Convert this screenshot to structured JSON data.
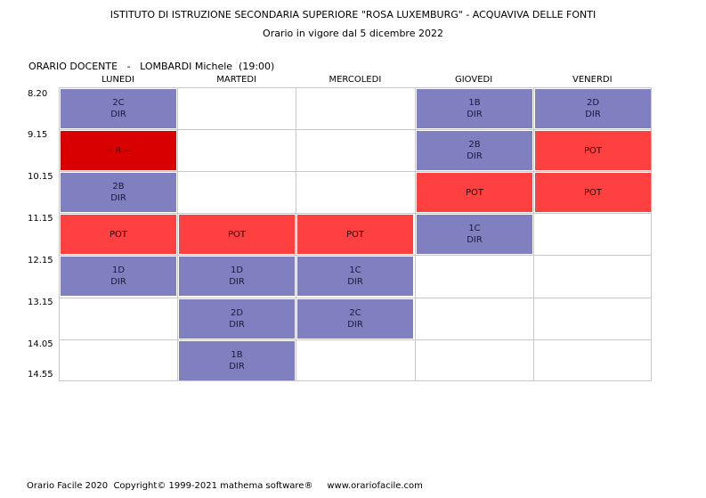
{
  "header": {
    "line1": "ISTITUTO DI ISTRUZIONE SECONDARIA SUPERIORE \"ROSA LUXEMBURG\" - ACQUAVIVA DELLE FONTI",
    "line2": "Orario in vigore dal 5 dicembre 2022"
  },
  "teacher": {
    "label": "ORARIO DOCENTE",
    "separator": "-",
    "name": "LOMBARDI Michele",
    "hours": "(19:00)"
  },
  "days": [
    "LUNEDI",
    "MARTEDI",
    "MERCOLEDI",
    "GIOVEDI",
    "VENERDI"
  ],
  "times": [
    "8.20",
    "9.15",
    "10.15",
    "11.15",
    "12.15",
    "13.15",
    "14.05",
    "14.55"
  ],
  "colors": {
    "dir": "#8080c0",
    "pot": "#ff4040",
    "r": "#d80000"
  },
  "lessons": [
    {
      "day": 0,
      "slot": 0,
      "kind": "dir",
      "line1": "2C",
      "line2": "DIR"
    },
    {
      "day": 0,
      "slot": 1,
      "kind": "r",
      "line1": "-- R --",
      "line2": ""
    },
    {
      "day": 0,
      "slot": 2,
      "kind": "dir",
      "line1": "2B",
      "line2": "DIR"
    },
    {
      "day": 0,
      "slot": 3,
      "kind": "pot",
      "line1": "POT",
      "line2": ""
    },
    {
      "day": 0,
      "slot": 4,
      "kind": "dir",
      "line1": "1D",
      "line2": "DIR"
    },
    {
      "day": 1,
      "slot": 3,
      "kind": "pot",
      "line1": "POT",
      "line2": ""
    },
    {
      "day": 1,
      "slot": 4,
      "kind": "dir",
      "line1": "1D",
      "line2": "DIR"
    },
    {
      "day": 1,
      "slot": 5,
      "kind": "dir",
      "line1": "2D",
      "line2": "DIR"
    },
    {
      "day": 1,
      "slot": 6,
      "kind": "dir",
      "line1": "1B",
      "line2": "DIR"
    },
    {
      "day": 2,
      "slot": 3,
      "kind": "pot",
      "line1": "POT",
      "line2": ""
    },
    {
      "day": 2,
      "slot": 4,
      "kind": "dir",
      "line1": "1C",
      "line2": "DIR"
    },
    {
      "day": 2,
      "slot": 5,
      "kind": "dir",
      "line1": "2C",
      "line2": "DIR"
    },
    {
      "day": 3,
      "slot": 0,
      "kind": "dir",
      "line1": "1B",
      "line2": "DIR"
    },
    {
      "day": 3,
      "slot": 1,
      "kind": "dir",
      "line1": "2B",
      "line2": "DIR"
    },
    {
      "day": 3,
      "slot": 2,
      "kind": "pot",
      "line1": "POT",
      "line2": ""
    },
    {
      "day": 3,
      "slot": 3,
      "kind": "dir",
      "line1": "1C",
      "line2": "DIR"
    },
    {
      "day": 4,
      "slot": 0,
      "kind": "dir",
      "line1": "2D",
      "line2": "DIR"
    },
    {
      "day": 4,
      "slot": 1,
      "kind": "pot",
      "line1": "POT",
      "line2": ""
    },
    {
      "day": 4,
      "slot": 2,
      "kind": "pot",
      "line1": "POT",
      "line2": ""
    }
  ],
  "footer": {
    "product": "Orario Facile 2020",
    "copyright": "Copyright© 1999-2021 mathema software®",
    "website": "www.orariofacile.com"
  }
}
